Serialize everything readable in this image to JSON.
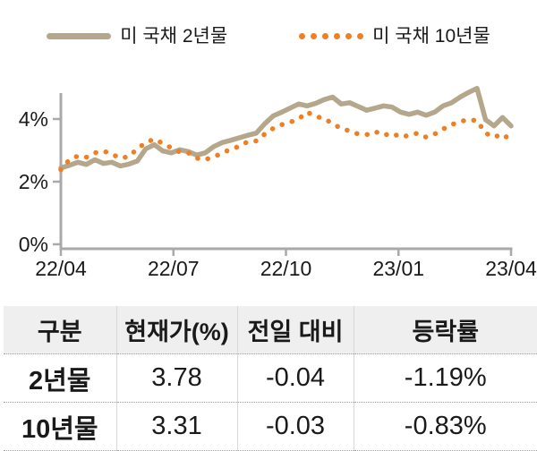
{
  "colors": {
    "series_2y": "#b4a78b",
    "series_10y": "#ef7f22",
    "axis": "#a9a9a9",
    "text": "#1a1a1a",
    "table_header_bg": "#efefef",
    "table_vertical_border": "#d8d8d8",
    "table_dotted_border": "#a0a0a0"
  },
  "legend": {
    "items": [
      {
        "label": "미 국채 2년물",
        "style": "solid"
      },
      {
        "label": "미 국채 10년물",
        "style": "dotted"
      }
    ]
  },
  "chart_data": {
    "type": "line",
    "title": "",
    "xlabel": "",
    "ylabel": "",
    "grid": false,
    "legend_position": "top",
    "ylim": [
      0,
      5
    ],
    "y_tick_values": [
      0,
      2,
      4
    ],
    "y_tick_labels": [
      "0%",
      "2%",
      "4%"
    ],
    "x_tick_labels": [
      "22/04",
      "22/07",
      "22/10",
      "23/01",
      "23/04"
    ],
    "series": [
      {
        "name": "미 국채 2년물",
        "line_style": "solid",
        "color": "#b4a78b",
        "values": [
          2.44,
          2.52,
          2.62,
          2.55,
          2.7,
          2.58,
          2.62,
          2.5,
          2.56,
          2.66,
          3.05,
          3.18,
          2.98,
          2.92,
          3.02,
          2.96,
          2.85,
          2.92,
          3.12,
          3.25,
          3.32,
          3.4,
          3.48,
          3.55,
          3.85,
          4.1,
          4.22,
          4.35,
          4.48,
          4.42,
          4.5,
          4.62,
          4.7,
          4.48,
          4.52,
          4.4,
          4.28,
          4.35,
          4.42,
          4.38,
          4.22,
          4.15,
          4.22,
          4.12,
          4.22,
          4.42,
          4.52,
          4.7,
          4.85,
          4.98,
          3.98,
          3.78,
          4.05,
          3.78
        ]
      },
      {
        "name": "미 국채 10년물",
        "line_style": "dotted",
        "color": "#ef7f22",
        "values": [
          2.38,
          2.7,
          2.82,
          2.78,
          2.92,
          2.98,
          2.88,
          2.75,
          2.8,
          3.05,
          3.25,
          3.36,
          3.22,
          3.08,
          2.95,
          2.92,
          2.75,
          2.7,
          2.8,
          2.9,
          3.05,
          3.12,
          3.28,
          3.3,
          3.52,
          3.7,
          3.82,
          3.9,
          4.0,
          4.22,
          4.08,
          4.02,
          3.85,
          3.7,
          3.62,
          3.52,
          3.5,
          3.6,
          3.48,
          3.55,
          3.42,
          3.48,
          3.55,
          3.42,
          3.52,
          3.68,
          3.82,
          3.92,
          3.98,
          3.95,
          3.55,
          3.42,
          3.52,
          3.31
        ]
      }
    ]
  },
  "table": {
    "headers": [
      "구분",
      "현재가(%)",
      "전일 대비",
      "등락률"
    ],
    "rows": [
      {
        "label": "2년물",
        "current": "3.78",
        "day_change": "-0.04",
        "change_rate": "-1.19%"
      },
      {
        "label": "10년물",
        "current": "3.31",
        "day_change": "-0.03",
        "change_rate": "-0.83%"
      }
    ]
  }
}
